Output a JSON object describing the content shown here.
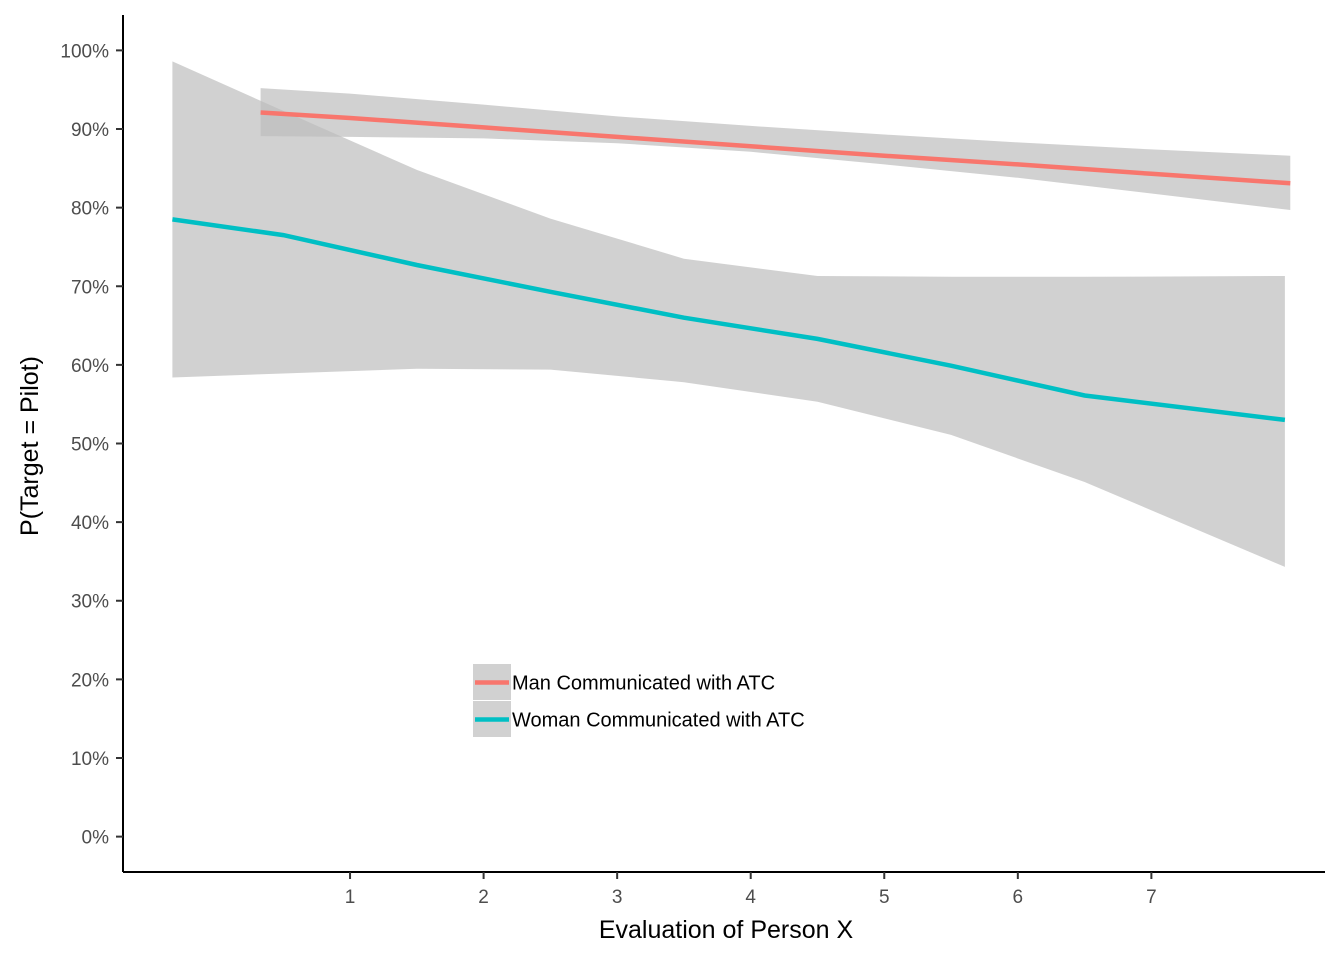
{
  "chart_data": {
    "type": "line",
    "xlabel": "Evaluation of Person X",
    "ylabel": "P(Target = Pilot)",
    "xlim": [
      -0.7,
      8.3
    ],
    "ylim": [
      -0.045,
      1.045
    ],
    "x_ticks": [
      1,
      2,
      3,
      4,
      5,
      6,
      7
    ],
    "x_tick_labels": [
      "1",
      "2",
      "3",
      "4",
      "5",
      "6",
      "7"
    ],
    "y_ticks": [
      0,
      0.1,
      0.2,
      0.3,
      0.4,
      0.5,
      0.6,
      0.7,
      0.8,
      0.9,
      1.0
    ],
    "y_tick_labels": [
      "0%",
      "10%",
      "20%",
      "30%",
      "40%",
      "50%",
      "60%",
      "70%",
      "80%",
      "90%",
      "100%"
    ],
    "grid": false,
    "legend_position": "inside-bottom-left",
    "ribbon_color": "#bdbdbd",
    "series": [
      {
        "name": "Man Communicated with ATC",
        "color": "#f8766d",
        "x": [
          0.33,
          1,
          2,
          3,
          4,
          5,
          6,
          7,
          8.04
        ],
        "y": [
          0.921,
          0.914,
          0.902,
          0.89,
          0.878,
          0.866,
          0.855,
          0.843,
          0.831
        ],
        "lower": [
          0.891,
          0.89,
          0.888,
          0.882,
          0.871,
          0.855,
          0.838,
          0.818,
          0.797
        ],
        "upper": [
          0.952,
          0.945,
          0.931,
          0.916,
          0.904,
          0.893,
          0.883,
          0.874,
          0.866
        ]
      },
      {
        "name": "Woman Communicated with ATC",
        "color": "#00bfc4",
        "x": [
          -0.33,
          0.5,
          1.5,
          2.5,
          3.5,
          4.5,
          5.5,
          6.5,
          8.0
        ],
        "y": [
          0.785,
          0.765,
          0.727,
          0.693,
          0.66,
          0.633,
          0.599,
          0.561,
          0.53
        ],
        "lower": [
          0.584,
          0.589,
          0.595,
          0.594,
          0.578,
          0.553,
          0.511,
          0.451,
          0.343
        ],
        "upper": [
          0.986,
          0.923,
          0.848,
          0.786,
          0.735,
          0.713,
          0.712,
          0.712,
          0.713
        ]
      }
    ]
  }
}
